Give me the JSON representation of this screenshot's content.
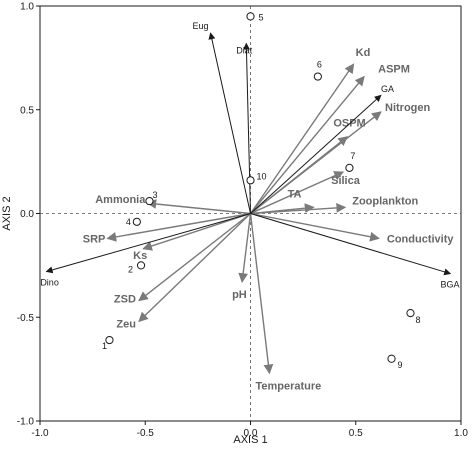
{
  "chart_data": {
    "type": "scatter",
    "subtype": "rda-biplot",
    "xlabel": "AXIS 1",
    "ylabel": "AXIS 2",
    "xlim": [
      -1.0,
      1.0
    ],
    "ylim": [
      -1.0,
      1.0
    ],
    "x_ticks": [
      -1.0,
      -0.5,
      0.0,
      0.5,
      1.0
    ],
    "y_ticks": [
      -1.0,
      -0.5,
      0.0,
      0.5,
      1.0
    ],
    "x_tick_labels": [
      "-1.0",
      "-0.5",
      "0.0",
      "0.5",
      "1.0"
    ],
    "y_tick_labels": [
      "-1.0",
      "-0.5",
      "0.0",
      "0.5",
      "1.0"
    ],
    "reference_lines": "dashed lines at x = 0 and y = 0",
    "grid": false,
    "legend": "none",
    "colors": {
      "taxa": "#1a1a1a",
      "environment": "#7a7a7a",
      "sites": "#1a1a1a"
    },
    "taxa_arrows": [
      {
        "label": "Eug",
        "x": -0.19,
        "y": 0.87
      },
      {
        "label": "Diat",
        "x": -0.02,
        "y": 0.82
      },
      {
        "label": "GA",
        "x": 0.62,
        "y": 0.57
      },
      {
        "label": "BGA",
        "x": 0.95,
        "y": -0.29
      },
      {
        "label": "Dino",
        "x": -0.97,
        "y": -0.28
      }
    ],
    "environment_arrows": [
      {
        "label": "Kd",
        "x": 0.49,
        "y": 0.72
      },
      {
        "label": "ASPM",
        "x": 0.54,
        "y": 0.66
      },
      {
        "label": "Nitrogen",
        "x": 0.62,
        "y": 0.49
      },
      {
        "label": "OSPM",
        "x": 0.46,
        "y": 0.37
      },
      {
        "label": "Silica",
        "x": 0.44,
        "y": 0.2
      },
      {
        "label": "TA",
        "x": 0.3,
        "y": 0.03
      },
      {
        "label": "Zooplankton",
        "x": 0.45,
        "y": 0.03
      },
      {
        "label": "Conductivity",
        "x": 0.61,
        "y": -0.12
      },
      {
        "label": "Ammonia",
        "x": -0.49,
        "y": 0.05
      },
      {
        "label": "SRP",
        "x": -0.68,
        "y": -0.12
      },
      {
        "label": "Ks",
        "x": -0.51,
        "y": -0.17
      },
      {
        "label": "pH",
        "x": -0.04,
        "y": -0.33
      },
      {
        "label": "ZSD",
        "x": -0.53,
        "y": -0.42
      },
      {
        "label": "Zeu",
        "x": -0.53,
        "y": -0.52
      },
      {
        "label": "Temperature",
        "x": 0.09,
        "y": -0.77
      }
    ],
    "sites": [
      {
        "label": "1",
        "x": -0.67,
        "y": -0.61
      },
      {
        "label": "2",
        "x": -0.52,
        "y": -0.25
      },
      {
        "label": "3",
        "x": -0.48,
        "y": 0.06
      },
      {
        "label": "4",
        "x": -0.54,
        "y": -0.04
      },
      {
        "label": "5",
        "x": 0.0,
        "y": 0.95
      },
      {
        "label": "6",
        "x": 0.32,
        "y": 0.66
      },
      {
        "label": "7",
        "x": 0.47,
        "y": 0.22
      },
      {
        "label": "8",
        "x": 0.76,
        "y": -0.48
      },
      {
        "label": "9",
        "x": 0.67,
        "y": -0.7
      },
      {
        "label": "10",
        "x": 0.0,
        "y": 0.16
      }
    ]
  }
}
